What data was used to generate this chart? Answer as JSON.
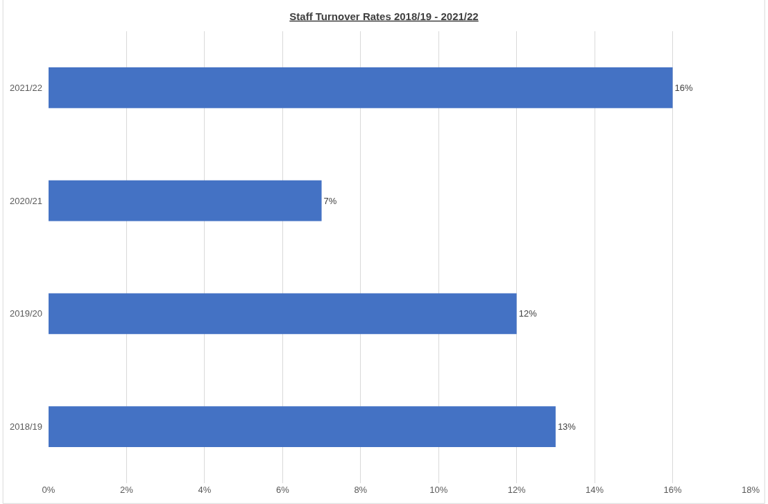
{
  "chart_data": {
    "type": "bar",
    "orientation": "horizontal",
    "title": "Staff Turnover Rates 2018/19 - 2021/22",
    "categories": [
      "2021/22",
      "2020/21",
      "2019/20",
      "2018/19"
    ],
    "values": [
      16,
      7,
      12,
      13
    ],
    "value_labels": [
      "16%",
      "7%",
      "12%",
      "13%"
    ],
    "color": "#4472c4",
    "xlim": [
      0,
      18
    ],
    "xticks": [
      {
        "value": 0,
        "label": "0%"
      },
      {
        "value": 2,
        "label": "2%"
      },
      {
        "value": 4,
        "label": "4%"
      },
      {
        "value": 6,
        "label": "6%"
      },
      {
        "value": 8,
        "label": "8%"
      },
      {
        "value": 10,
        "label": "10%"
      },
      {
        "value": 12,
        "label": "12%"
      },
      {
        "value": 14,
        "label": "14%"
      },
      {
        "value": 16,
        "label": "16%"
      },
      {
        "value": 18,
        "label": "18%"
      }
    ],
    "grid": "x",
    "legend": false
  }
}
